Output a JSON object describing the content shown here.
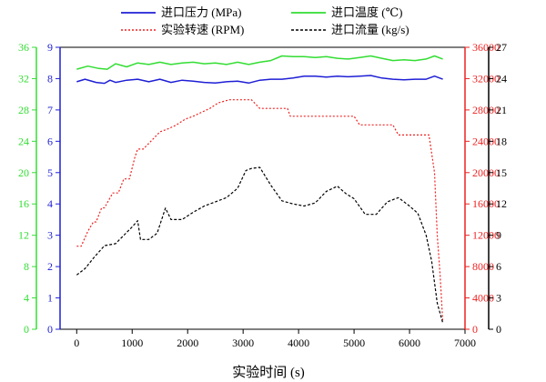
{
  "chart_data": {
    "type": "line",
    "xlabel": "实验时间 (s)",
    "xlim": [
      -300,
      7000
    ],
    "xticks": [
      0,
      1000,
      2000,
      3000,
      4000,
      5000,
      6000,
      7000
    ],
    "legend_position": "top",
    "axes": [
      {
        "id": "pressure",
        "side": "left-inner",
        "color": "#1f1fd6",
        "lim": [
          0,
          9
        ],
        "ticks": [
          0,
          1,
          2,
          3,
          4,
          5,
          6,
          7,
          8,
          9
        ]
      },
      {
        "id": "temperature",
        "side": "left-outer",
        "color": "#33dd33",
        "lim": [
          0,
          36
        ],
        "ticks": [
          0,
          4,
          8,
          12,
          16,
          20,
          24,
          28,
          32,
          36
        ]
      },
      {
        "id": "rpm",
        "side": "right-inner",
        "color": "#ee2222",
        "lim": [
          0,
          36000
        ],
        "ticks": [
          0,
          4000,
          8000,
          12000,
          16000,
          20000,
          24000,
          28000,
          32000,
          36000
        ]
      },
      {
        "id": "flow",
        "side": "right-outer",
        "color": "#000000",
        "lim": [
          0,
          27
        ],
        "ticks": [
          0,
          3,
          6,
          9,
          12,
          15,
          18,
          21,
          24,
          27
        ]
      }
    ],
    "series": [
      {
        "name": "进口压力 (MPa)",
        "axis": "pressure",
        "color": "#1f1fd6",
        "dash": "solid",
        "x": [
          0,
          150,
          350,
          500,
          600,
          700,
          900,
          1100,
          1300,
          1500,
          1700,
          1900,
          2100,
          2300,
          2500,
          2700,
          2900,
          3100,
          3300,
          3500,
          3700,
          3900,
          4100,
          4300,
          4500,
          4700,
          4900,
          5100,
          5300,
          5500,
          5700,
          5900,
          6100,
          6300,
          6450,
          6600
        ],
        "y": [
          7.9,
          7.98,
          7.88,
          7.85,
          7.95,
          7.88,
          7.95,
          7.98,
          7.9,
          7.98,
          7.88,
          7.95,
          7.92,
          7.88,
          7.86,
          7.9,
          7.92,
          7.86,
          7.95,
          7.98,
          7.98,
          8.02,
          8.08,
          8.08,
          8.05,
          8.08,
          8.06,
          8.08,
          8.1,
          8.02,
          7.98,
          7.96,
          7.98,
          7.98,
          8.08,
          7.98
        ]
      },
      {
        "name": "进口温度 (℃)",
        "axis": "temperature",
        "color": "#33dd33",
        "dash": "solid",
        "x": [
          0,
          200,
          400,
          550,
          700,
          900,
          1100,
          1300,
          1500,
          1700,
          1900,
          2100,
          2300,
          2500,
          2700,
          2900,
          3100,
          3300,
          3500,
          3700,
          3900,
          4100,
          4300,
          4500,
          4700,
          4900,
          5100,
          5300,
          5500,
          5700,
          5900,
          6100,
          6300,
          6450,
          6600
        ],
        "y": [
          33.2,
          33.6,
          33.3,
          33.2,
          33.9,
          33.5,
          34.0,
          33.8,
          34.1,
          33.8,
          34.0,
          34.1,
          33.9,
          34.0,
          33.8,
          34.1,
          33.8,
          34.1,
          34.3,
          34.9,
          34.8,
          34.8,
          34.7,
          34.8,
          34.6,
          34.5,
          34.7,
          34.9,
          34.6,
          34.3,
          34.4,
          34.3,
          34.5,
          34.9,
          34.5
        ]
      },
      {
        "name": "实验转速 (RPM)",
        "axis": "rpm",
        "color": "#ee2222",
        "dash": "dotted",
        "x": [
          0,
          80,
          200,
          300,
          350,
          450,
          500,
          650,
          750,
          850,
          950,
          1050,
          1100,
          1200,
          1350,
          1500,
          1650,
          1800,
          1950,
          2100,
          2250,
          2400,
          2550,
          2700,
          2750,
          2800,
          3000,
          3150,
          3300,
          3450,
          3600,
          3800,
          3850,
          4000,
          4200,
          4400,
          4600,
          4800,
          5000,
          5100,
          5300,
          5500,
          5700,
          5800,
          6000,
          6200,
          6350,
          6450,
          6500,
          6550,
          6600
        ],
        "y": [
          10600,
          10600,
          12500,
          13700,
          13700,
          15500,
          15500,
          17400,
          17400,
          19200,
          19200,
          22000,
          23000,
          23000,
          24100,
          25200,
          25600,
          26100,
          26800,
          27200,
          27700,
          28200,
          28900,
          29200,
          29300,
          29300,
          29300,
          29300,
          28200,
          28200,
          28200,
          28200,
          27200,
          27200,
          27200,
          27200,
          27200,
          27200,
          27200,
          26100,
          26100,
          26100,
          26100,
          24800,
          24800,
          24800,
          24800,
          20000,
          12000,
          7000,
          900
        ]
      },
      {
        "name": "进口流量 (kg/s)",
        "axis": "flow",
        "color": "#000000",
        "dash": "dashed",
        "x": [
          0,
          150,
          300,
          500,
          700,
          850,
          1000,
          1100,
          1150,
          1300,
          1450,
          1600,
          1700,
          1900,
          2100,
          2300,
          2500,
          2700,
          2900,
          3050,
          3150,
          3300,
          3500,
          3700,
          3900,
          4100,
          4300,
          4500,
          4700,
          4850,
          5000,
          5200,
          5400,
          5600,
          5800,
          6000,
          6150,
          6300,
          6400,
          6500,
          6600
        ],
        "y": [
          5.2,
          5.8,
          6.8,
          8.0,
          8.2,
          9.0,
          9.8,
          10.4,
          8.6,
          8.6,
          9.2,
          11.6,
          10.5,
          10.5,
          11.2,
          11.8,
          12.2,
          12.6,
          13.5,
          15.2,
          15.4,
          15.5,
          13.8,
          12.3,
          12.0,
          11.8,
          12.1,
          13.2,
          13.7,
          13.0,
          12.5,
          11.0,
          11.0,
          12.2,
          12.6,
          11.8,
          11.1,
          9.0,
          6.5,
          2.5,
          0.6
        ]
      }
    ]
  }
}
